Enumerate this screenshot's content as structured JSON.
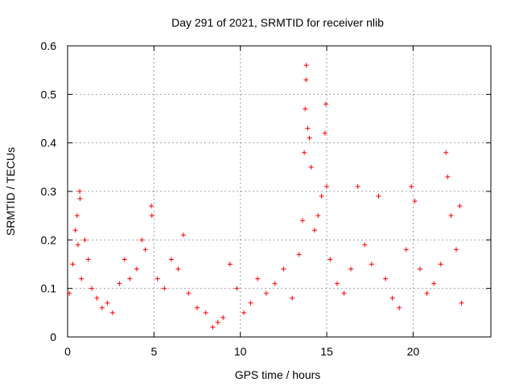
{
  "chart_data": {
    "type": "scatter",
    "title": "Day 291 of 2021, SRMTID for receiver nlib",
    "xlabel": "GPS time / hours",
    "ylabel": "SRMTID / TECUs",
    "xlim": [
      0,
      24.5
    ],
    "ylim": [
      0,
      0.6
    ],
    "x_ticks": [
      0,
      5,
      10,
      15,
      20
    ],
    "x_tick_labels": [
      "0",
      "5",
      "10",
      "15",
      "20"
    ],
    "y_ticks": [
      0,
      0.1,
      0.2,
      0.3,
      0.4,
      0.5,
      0.6
    ],
    "y_tick_labels": [
      "0",
      "0.1",
      "0.2",
      "0.3",
      "0.4",
      "0.5",
      "0.6"
    ],
    "grid": true,
    "marker": "+",
    "color": "#ff0000",
    "series": [
      {
        "name": "SRMTID",
        "points": [
          [
            0.1,
            0.09
          ],
          [
            0.3,
            0.15
          ],
          [
            0.45,
            0.22
          ],
          [
            0.55,
            0.25
          ],
          [
            0.6,
            0.19
          ],
          [
            0.7,
            0.3
          ],
          [
            0.72,
            0.285
          ],
          [
            0.8,
            0.12
          ],
          [
            1.0,
            0.2
          ],
          [
            1.2,
            0.16
          ],
          [
            1.4,
            0.1
          ],
          [
            1.7,
            0.08
          ],
          [
            2.0,
            0.06
          ],
          [
            2.3,
            0.07
          ],
          [
            2.6,
            0.05
          ],
          [
            3.0,
            0.11
          ],
          [
            3.3,
            0.16
          ],
          [
            3.6,
            0.12
          ],
          [
            4.0,
            0.14
          ],
          [
            4.3,
            0.2
          ],
          [
            4.5,
            0.18
          ],
          [
            4.85,
            0.27
          ],
          [
            4.88,
            0.25
          ],
          [
            5.2,
            0.12
          ],
          [
            5.6,
            0.1
          ],
          [
            6.0,
            0.16
          ],
          [
            6.4,
            0.14
          ],
          [
            6.7,
            0.21
          ],
          [
            7.0,
            0.09
          ],
          [
            7.5,
            0.06
          ],
          [
            8.0,
            0.05
          ],
          [
            8.4,
            0.02
          ],
          [
            8.7,
            0.03
          ],
          [
            9.0,
            0.04
          ],
          [
            9.4,
            0.15
          ],
          [
            9.8,
            0.1
          ],
          [
            10.2,
            0.05
          ],
          [
            10.6,
            0.07
          ],
          [
            11.0,
            0.12
          ],
          [
            11.5,
            0.09
          ],
          [
            12.0,
            0.11
          ],
          [
            12.5,
            0.14
          ],
          [
            13.0,
            0.08
          ],
          [
            13.4,
            0.17
          ],
          [
            13.6,
            0.24
          ],
          [
            13.7,
            0.38
          ],
          [
            13.75,
            0.47
          ],
          [
            13.8,
            0.53
          ],
          [
            13.82,
            0.56
          ],
          [
            13.9,
            0.43
          ],
          [
            14.0,
            0.41
          ],
          [
            14.1,
            0.35
          ],
          [
            14.3,
            0.22
          ],
          [
            14.5,
            0.25
          ],
          [
            14.7,
            0.29
          ],
          [
            14.9,
            0.42
          ],
          [
            14.95,
            0.48
          ],
          [
            15.0,
            0.31
          ],
          [
            15.2,
            0.16
          ],
          [
            15.6,
            0.11
          ],
          [
            16.0,
            0.09
          ],
          [
            16.4,
            0.14
          ],
          [
            16.8,
            0.31
          ],
          [
            17.2,
            0.19
          ],
          [
            17.6,
            0.15
          ],
          [
            18.0,
            0.29
          ],
          [
            18.4,
            0.12
          ],
          [
            18.8,
            0.08
          ],
          [
            19.2,
            0.06
          ],
          [
            19.6,
            0.18
          ],
          [
            19.9,
            0.31
          ],
          [
            20.1,
            0.28
          ],
          [
            20.4,
            0.14
          ],
          [
            20.8,
            0.09
          ],
          [
            21.2,
            0.11
          ],
          [
            21.6,
            0.15
          ],
          [
            21.9,
            0.38
          ],
          [
            22.0,
            0.33
          ],
          [
            22.2,
            0.25
          ],
          [
            22.5,
            0.18
          ],
          [
            22.7,
            0.27
          ],
          [
            22.8,
            0.07
          ]
        ]
      }
    ]
  }
}
